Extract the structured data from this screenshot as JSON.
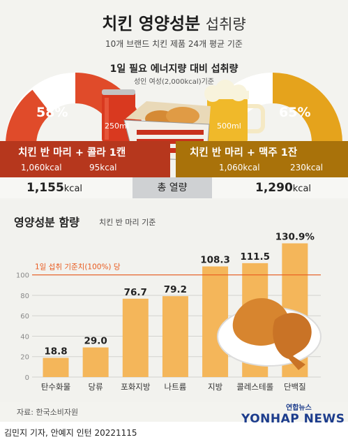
{
  "header": {
    "title_bold": "치킨 영양성분",
    "title_light": "섭취량",
    "subtitle": "10개 브랜드 치킨 제품 24개 평균 기준"
  },
  "energy": {
    "title": "1일 필요 에너지량 대비 섭취량",
    "note": "성인 여성(2,000kcal)기준",
    "left": {
      "percent": "58%",
      "percent_value": 58,
      "volume": "250ml",
      "combo": "치킨 반 마리 + 콜라 1캔",
      "kcal_food": "1,060kcal",
      "kcal_drink": "95kcal",
      "total_num": "1,155",
      "total_unit": "kcal"
    },
    "right": {
      "percent": "65%",
      "percent_value": 65,
      "volume": "500ml",
      "combo": "치킨 반 마리 + 맥주 1잔",
      "kcal_food": "1,060kcal",
      "kcal_drink": "230kcal",
      "total_num": "1,290",
      "total_unit": "kcal"
    },
    "total_label": "총 열량"
  },
  "nutrition": {
    "title": "영양성분 함량",
    "subtitle": "치킨 반 마리 기준"
  },
  "chart_data": {
    "type": "bar",
    "title": "영양성분 함량",
    "subtitle": "치킨 반 마리 기준",
    "categories": [
      "탄수화물",
      "당류",
      "포화지방",
      "나트륨",
      "지방",
      "콜레스테롤",
      "단백질"
    ],
    "values": [
      18.8,
      29.0,
      76.7,
      79.2,
      108.3,
      111.5,
      130.9
    ],
    "value_labels": [
      "18.8",
      "29.0",
      "76.7",
      "79.2",
      "108.3",
      "111.5",
      "130.9%"
    ],
    "ylim": [
      0,
      135
    ],
    "yticks": [
      0,
      20,
      40,
      60,
      80,
      100
    ],
    "reference_line": {
      "value": 100,
      "label": "1일 섭취 기준치(100%) 당"
    },
    "grid": true
  },
  "footer": {
    "source": "자료: 한국소비자원",
    "credit": "김민지 기자, 안예지 인턴  20221115",
    "logo_small": "연합뉴스",
    "logo_big": "YONHAP NEWS"
  },
  "colors": {
    "cola_red": "#e04b2a",
    "beer_gold": "#e5a31c",
    "bar": "#f4b65a",
    "reference": "#e85a1e",
    "band_left": "#b6371d",
    "band_right": "#a9720a"
  }
}
